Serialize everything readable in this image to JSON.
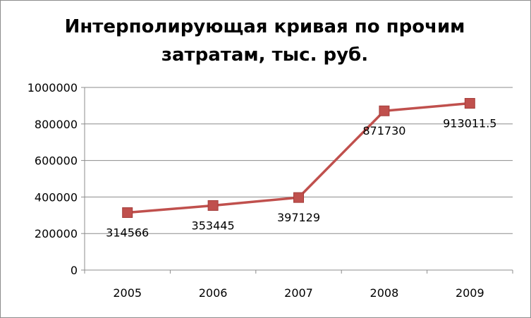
{
  "chart_data": {
    "type": "line",
    "title_lines": [
      "Интерполирующая кривая по прочим",
      "затратам, тыс. руб."
    ],
    "categories": [
      "2005",
      "2006",
      "2007",
      "2008",
      "2009"
    ],
    "series": [
      {
        "values": [
          314566,
          353445,
          397129,
          871730,
          913011.5
        ],
        "labels": [
          "314566",
          "353445",
          "397129",
          "871730",
          "913011.5"
        ],
        "color": "#c0504d"
      }
    ],
    "ylim": [
      0,
      1000000
    ],
    "yticks": [
      "0",
      "200000",
      "400000",
      "600000",
      "800000",
      "1000000"
    ],
    "grid": "horizontal",
    "legend": "none",
    "xlabel": "",
    "ylabel": ""
  }
}
